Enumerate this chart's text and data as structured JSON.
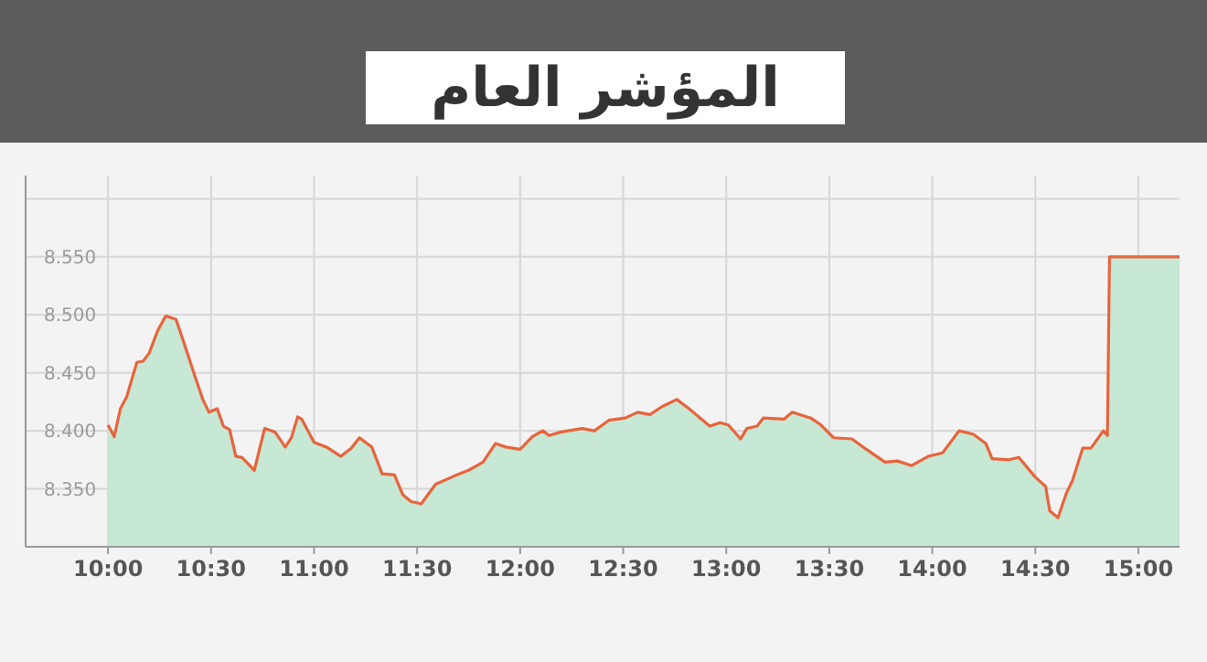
{
  "chart_data": {
    "type": "area",
    "title": "المؤشر العام",
    "x": [
      10.0,
      10.03,
      10.06,
      10.09,
      10.14,
      10.17,
      10.2,
      10.24,
      10.28,
      10.33,
      10.37,
      10.42,
      10.46,
      10.49,
      10.53,
      10.56,
      10.59,
      10.62,
      10.65,
      10.71,
      10.76,
      10.81,
      10.86,
      10.89,
      10.92,
      10.94,
      11.0,
      11.06,
      11.13,
      11.18,
      11.22,
      11.28,
      11.33,
      11.39,
      11.43,
      11.47,
      11.52,
      11.59,
      11.68,
      11.75,
      11.82,
      11.88,
      11.93,
      12.0,
      12.06,
      12.11,
      12.14,
      12.2,
      12.3,
      12.36,
      12.43,
      12.51,
      12.57,
      12.63,
      12.69,
      12.76,
      12.82,
      12.92,
      12.97,
      13.01,
      13.07,
      13.1,
      13.15,
      13.18,
      13.28,
      13.32,
      13.41,
      13.46,
      13.52,
      13.61,
      13.68,
      13.77,
      13.83,
      13.9,
      13.98,
      14.05,
      14.13,
      14.2,
      14.26,
      14.29,
      14.37,
      14.42,
      14.5,
      14.55,
      14.57,
      14.61,
      14.65,
      14.68,
      14.73,
      14.77,
      14.83,
      14.85,
      14.86,
      15.2
    ],
    "series": [
      {
        "color": "#e8643c",
        "values": [
          8405,
          8395,
          8419,
          8429,
          8459,
          8460,
          8467,
          8486,
          8499,
          8496,
          8475,
          8448,
          8427,
          8416,
          8419,
          8404,
          8401,
          8378,
          8377,
          8366,
          8402,
          8399,
          8386,
          8394,
          8412,
          8410,
          8390,
          8386,
          8378,
          8385,
          8394,
          8386,
          8363,
          8362,
          8345,
          8339,
          8337,
          8354,
          8361,
          8366,
          8373,
          8389,
          8386,
          8384,
          8395,
          8400,
          8396,
          8399,
          8402,
          8400,
          8409,
          8411,
          8416,
          8414,
          8421,
          8427,
          8419,
          8404,
          8407,
          8405,
          8393,
          8402,
          8404,
          8411,
          8410,
          8416,
          8411,
          8405,
          8394,
          8393,
          8384,
          8373,
          8374,
          8370,
          8378,
          8381,
          8400,
          8397,
          8389,
          8376,
          8375,
          8377,
          8360,
          8352,
          8331,
          8325,
          8346,
          8357,
          8385,
          8385,
          8400,
          8396,
          8550,
          8550
        ]
      }
    ],
    "xlim": [
      9.6,
      15.2
    ],
    "xticks": [
      {
        "value": 10,
        "label": "10:00"
      },
      {
        "value": 10.5,
        "label": "10:30"
      },
      {
        "value": 11,
        "label": "11:00"
      },
      {
        "value": 11.5,
        "label": "11:30"
      },
      {
        "value": 12,
        "label": "12:00"
      },
      {
        "value": 12.5,
        "label": "12:30"
      },
      {
        "value": 13,
        "label": "13:00"
      },
      {
        "value": 13.5,
        "label": "13:30"
      },
      {
        "value": 14,
        "label": "14:00"
      },
      {
        "value": 14.5,
        "label": "14:30"
      },
      {
        "value": 15,
        "label": "15:00"
      }
    ],
    "ylim": [
      8300,
      8620
    ],
    "yticks": [
      {
        "value": 8350,
        "label": "8.350"
      },
      {
        "value": 8400,
        "label": "8.400"
      },
      {
        "value": 8450,
        "label": "8.450"
      },
      {
        "value": 8500,
        "label": "8.500"
      },
      {
        "value": 8550,
        "label": "8.550"
      },
      {
        "value": 8600,
        "label": null
      }
    ],
    "grid": true,
    "marker": "none",
    "line_style": "solid"
  }
}
